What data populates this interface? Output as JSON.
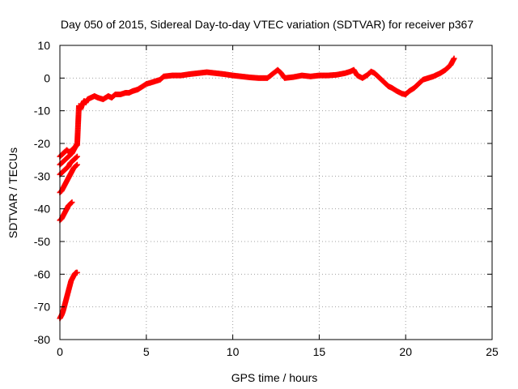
{
  "chart_data": {
    "type": "scatter",
    "title": "Day 050 of 2015, Sidereal Day-to-day VTEC variation (SDTVAR) for receiver p367",
    "xlabel": "GPS time / hours",
    "ylabel": "SDTVAR / TECUs",
    "xlim": [
      0,
      25
    ],
    "ylim": [
      -80,
      10
    ],
    "xticks": [
      0,
      5,
      10,
      15,
      20,
      25
    ],
    "yticks": [
      -80,
      -70,
      -60,
      -50,
      -40,
      -30,
      -20,
      -10,
      0,
      10
    ],
    "xtick_labels": [
      "0",
      "5",
      "10",
      "15",
      "20",
      "25"
    ],
    "ytick_labels": [
      "-80",
      "-70",
      "-60",
      "-50",
      "-40",
      "-30",
      "-20",
      "-10",
      "0",
      "10"
    ],
    "grid": true,
    "marker": "+",
    "series_color": "#ff0000",
    "series": [
      {
        "x": [
          0.0,
          0.05,
          0.1,
          0.15,
          0.2,
          0.25,
          0.3,
          0.35,
          0.4,
          0.45,
          0.5,
          0.55,
          0.6,
          0.65,
          0.7,
          0.75,
          0.8,
          0.85,
          0.9,
          0.95,
          1.0,
          0.0,
          0.1,
          0.2,
          0.3,
          0.4,
          0.5,
          0.6,
          0.7,
          0.0,
          0.1,
          0.2,
          0.3,
          0.4,
          0.5,
          0.6,
          0.7,
          0.8,
          0.9,
          1.0,
          0.0,
          0.1,
          0.2,
          0.3,
          0.4,
          0.5,
          0.6,
          0.7,
          0.8,
          0.9,
          1.0,
          0.0,
          0.1,
          0.2,
          0.3,
          0.4,
          0.5,
          0.6,
          0.7,
          0.8,
          0.9,
          1.0,
          0.0,
          0.1,
          0.2,
          0.3,
          0.4,
          0.5,
          0.6,
          0.7,
          0.8,
          0.9,
          1.0,
          1.1,
          1.2,
          1.3,
          1.4,
          1.5,
          1.6,
          1.8,
          2.0,
          2.2,
          2.5,
          2.8,
          3.0,
          3.2,
          3.5,
          3.8,
          4.0,
          4.2,
          4.5,
          4.8,
          5.0,
          5.2,
          5.5,
          5.8,
          6.0,
          6.5,
          7.0,
          7.5,
          8.0,
          8.5,
          9.0,
          9.5,
          10.0,
          10.5,
          11.0,
          11.5,
          12.0,
          12.6,
          12.8,
          13.0,
          13.5,
          14.0,
          14.5,
          15.0,
          15.5,
          16.0,
          16.5,
          16.8,
          17.0,
          17.2,
          17.5,
          17.8,
          18.0,
          18.2,
          18.5,
          18.8,
          19.0,
          19.2,
          19.5,
          19.8,
          20.0,
          20.2,
          20.5,
          20.8,
          21.0,
          21.3,
          21.6,
          22.0,
          22.3,
          22.6,
          22.8
        ],
        "y": [
          -73.5,
          -73.0,
          -72.5,
          -71.8,
          -71.0,
          -70.0,
          -69.0,
          -68.0,
          -67.0,
          -66.0,
          -65.0,
          -64.0,
          -63.0,
          -62.0,
          -61.5,
          -61.0,
          -60.5,
          -60.0,
          -59.7,
          -59.5,
          -59.5,
          -43.5,
          -43.0,
          -42.0,
          -41.0,
          -40.0,
          -39.0,
          -38.5,
          -38.0,
          -35.0,
          -34.5,
          -33.5,
          -32.5,
          -31.5,
          -30.5,
          -29.5,
          -28.5,
          -27.5,
          -27.0,
          -26.5,
          -29.5,
          -29.0,
          -28.5,
          -28.0,
          -27.5,
          -27.0,
          -26.0,
          -25.5,
          -25.0,
          -24.5,
          -24.0,
          -26.5,
          -26.0,
          -25.5,
          -25.0,
          -24.5,
          -24.0,
          -23.5,
          -23.0,
          -22.0,
          -21.0,
          -20.0,
          -24.0,
          -23.5,
          -23.0,
          -22.5,
          -22.0,
          -22.5,
          -22.5,
          -22.0,
          -21.5,
          -21.0,
          -20.5,
          -8.5,
          -9.5,
          -8.0,
          -7.0,
          -7.5,
          -6.5,
          -6.0,
          -5.5,
          -6.0,
          -6.5,
          -5.5,
          -6.0,
          -5.0,
          -5.0,
          -4.5,
          -4.5,
          -4.0,
          -3.5,
          -2.5,
          -1.8,
          -1.5,
          -1.0,
          -0.5,
          0.5,
          0.8,
          0.8,
          1.2,
          1.5,
          1.8,
          1.5,
          1.2,
          0.8,
          0.5,
          0.2,
          0.0,
          0.0,
          2.5,
          1.5,
          0.0,
          0.3,
          0.8,
          0.5,
          0.8,
          0.8,
          1.0,
          1.5,
          2.0,
          2.5,
          0.8,
          0.0,
          1.0,
          2.0,
          1.5,
          0.0,
          -1.5,
          -2.5,
          -3.0,
          -4.0,
          -4.8,
          -5.0,
          -4.0,
          -3.0,
          -1.5,
          -0.5,
          0.0,
          0.5,
          1.5,
          2.5,
          4.0,
          6.0
        ]
      }
    ]
  }
}
